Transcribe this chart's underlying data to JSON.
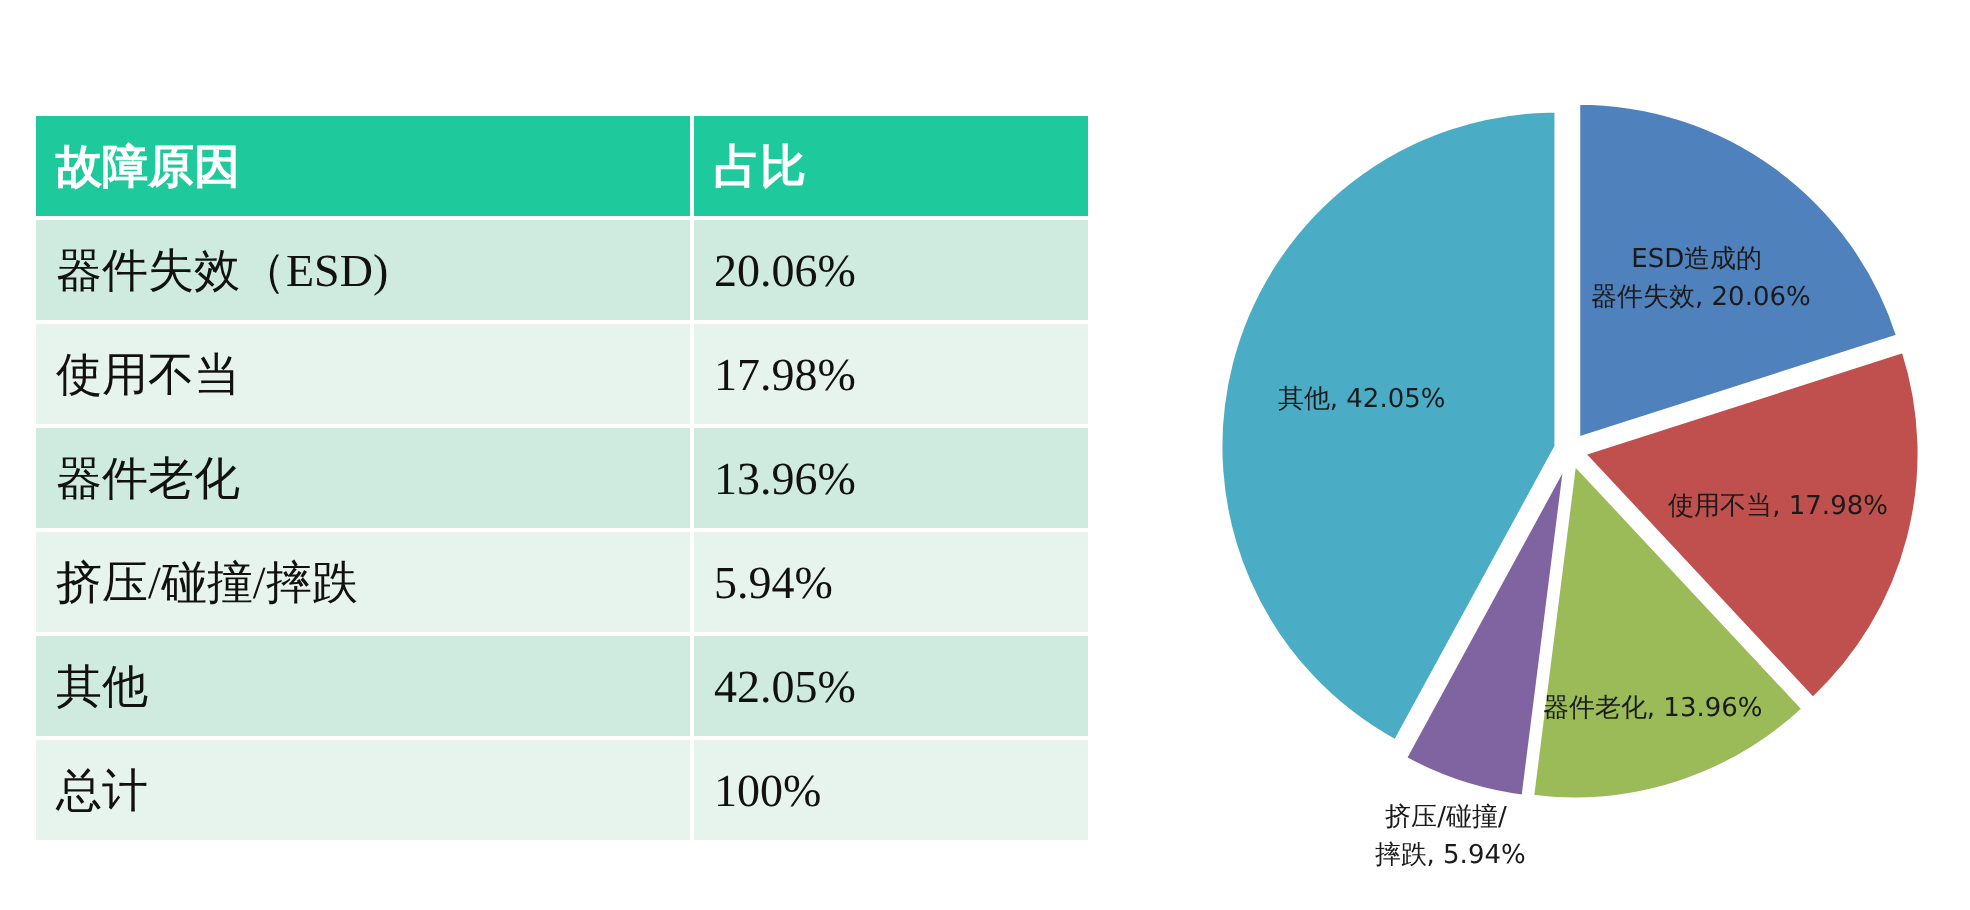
{
  "chart_data": [
    {
      "type": "other",
      "annotations": [
        "故障原因",
        "占比",
        "器件失效（ESD)",
        "20.06%",
        "使用不当",
        "17.98%",
        "器件老化",
        "13.96%",
        "挤压/碰撞/摔跌",
        "5.94%",
        "其他",
        "42.05%",
        "总计",
        "100%"
      ]
    },
    {
      "type": "pie",
      "categories": [
        "ESD造成的器件失效",
        "使用不当",
        "器件老化",
        "挤压/碰撞/摔跌",
        "其他"
      ],
      "values": [
        20.06,
        17.98,
        13.96,
        5.94,
        42.05
      ],
      "colors": [
        "#4f81bd",
        "#c0504d",
        "#9bbb59",
        "#8064a2",
        "#4bacc6"
      ],
      "value_labels": [
        "20.06%",
        "17.98%",
        "13.96%",
        "5.94%",
        "42.05%"
      ]
    }
  ]
}
